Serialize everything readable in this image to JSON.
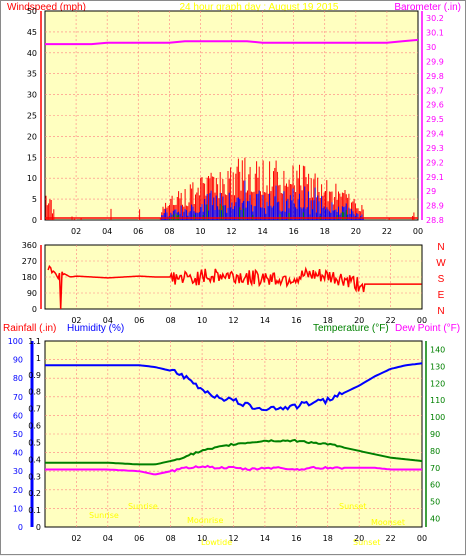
{
  "header": {
    "left_label": "Windspeed (mph)",
    "title": "24 hour graph day : August 19 2015",
    "right_label": "Barometer (.in)"
  },
  "colors": {
    "plot_bg": "#ffffc0",
    "grid": "#ff8080",
    "axis_red": "#ff0000",
    "wind_gust": "#ff0000",
    "wind_avg": "#0000ff",
    "wind_green": "#008000",
    "barometer": "#ff00ff",
    "humidity": "#0000ff",
    "temperature": "#008000",
    "dewpoint": "#ff00ff",
    "direction": "#ff0000",
    "sun_labels": "#ffff00",
    "label_green": "#008000",
    "label_blue": "#0000ff",
    "label_mag": "#ff00ff"
  },
  "x_ticks": [
    "02",
    "04",
    "06",
    "08",
    "10",
    "12",
    "14",
    "16",
    "18",
    "20",
    "22",
    "00"
  ],
  "wind_panel": {
    "y_ticks": [
      "0",
      "5",
      "10",
      "15",
      "20",
      "25",
      "30",
      "35",
      "40",
      "45",
      "50"
    ],
    "baro_ticks": [
      "28.8",
      "28.9",
      "29",
      "29.1",
      "29.2",
      "29.3",
      "29.4",
      "29.5",
      "29.6",
      "29.7",
      "29.8",
      "29.9",
      "30",
      "30.1",
      "30.2"
    ]
  },
  "direction_panel": {
    "y_ticks": [
      "0",
      "90",
      "180",
      "270",
      "360"
    ],
    "compass": [
      "N",
      "W",
      "S",
      "E",
      "N"
    ]
  },
  "lower_panel": {
    "rain_label": "Rainfall (.in)",
    "humidity_label": "Humidity (%)",
    "temperature_label": "Temperature (°F)",
    "dewpoint_label": "Dew Point (°F)",
    "rain_ticks": [
      "0",
      "0.1",
      "0.2",
      "0.3",
      "0.4",
      "0.5",
      "0.6",
      "0.7",
      "0.8",
      "0.9",
      "1",
      "1.1"
    ],
    "humidity_ticks": [
      "0",
      "10",
      "20",
      "30",
      "40",
      "50",
      "60",
      "70",
      "80",
      "90",
      "100"
    ],
    "temp_ticks": [
      "40",
      "50",
      "60",
      "70",
      "80",
      "90",
      "100",
      "110",
      "120",
      "130",
      "140"
    ],
    "sun_texts": [
      "Sunrise",
      "Sunrise",
      "Moonrise",
      "Lowtide",
      "Sunset",
      "Sunset",
      "Moonset"
    ]
  },
  "chart_data": [
    {
      "type": "line",
      "title": "24 hour graph day : August 19 2015",
      "ylabel": "Windspeed (mph)",
      "y2label": "Barometer (.in)",
      "ylim": [
        0,
        50
      ],
      "y2lim": [
        28.8,
        30.25
      ],
      "xlim": [
        0,
        24
      ],
      "series": [
        {
          "name": "Barometer (.in)",
          "x": [
            0,
            1,
            2,
            3,
            4,
            5,
            6,
            7,
            8,
            9,
            10,
            11,
            12,
            13,
            14,
            15,
            16,
            17,
            18,
            19,
            20,
            21,
            22,
            23,
            24
          ],
          "values": [
            30.02,
            30.02,
            30.02,
            30.02,
            30.03,
            30.03,
            30.03,
            30.03,
            30.03,
            30.04,
            30.04,
            30.04,
            30.04,
            30.04,
            30.03,
            30.03,
            30.03,
            30.03,
            30.03,
            30.03,
            30.03,
            30.03,
            30.03,
            30.04,
            30.05
          ]
        }
      ]
    },
    {
      "type": "line",
      "ylim": [
        0,
        360
      ],
      "xlim": [
        0,
        24
      ],
      "series": [
        {
          "name": "",
          "x": [
            0.2,
            0.5,
            0.8,
            1.2,
            1.6,
            2,
            3,
            4,
            5,
            6,
            7,
            8,
            9,
            10,
            11,
            12,
            13,
            14,
            15,
            16,
            17,
            18,
            19,
            20,
            21,
            22,
            23,
            24
          ],
          "values": [
            230,
            220,
            190,
            200,
            180,
            185,
            180,
            175,
            180,
            185,
            180,
            180,
            170,
            180,
            190,
            185,
            175,
            180,
            170,
            175,
            185,
            180,
            165,
            140,
            140,
            140,
            140,
            140
          ]
        }
      ]
    },
    {
      "type": "line",
      "ylim": [
        0,
        100
      ],
      "y2lim": [
        35,
        145
      ],
      "xlim": [
        0,
        24
      ],
      "series": [
        {
          "name": "Humidity (%)",
          "x": [
            0,
            2,
            4,
            6,
            7,
            8,
            9,
            10,
            11,
            12,
            13,
            14,
            15,
            16,
            17,
            18,
            19,
            20,
            21,
            22,
            23,
            24
          ],
          "values": [
            87,
            87,
            87,
            87,
            86,
            84,
            80,
            74,
            70,
            68,
            65,
            64,
            64,
            65,
            67,
            68,
            72,
            76,
            81,
            85,
            87,
            88
          ]
        },
        {
          "name": "Temperature (°F)",
          "x": [
            0,
            2,
            4,
            6,
            7,
            8,
            9,
            10,
            11,
            12,
            13,
            14,
            15,
            16,
            17,
            18,
            19,
            20,
            21,
            22,
            23,
            24
          ],
          "values": [
            73,
            73,
            73,
            72,
            72,
            74,
            77,
            80,
            82,
            84,
            85,
            86,
            86,
            86,
            85,
            84,
            82,
            80,
            78,
            76,
            75,
            74
          ]
        },
        {
          "name": "Dew Point (°F)",
          "x": [
            0,
            2,
            4,
            6,
            7,
            8,
            9,
            10,
            11,
            12,
            13,
            14,
            15,
            16,
            17,
            18,
            19,
            20,
            21,
            22,
            23,
            24
          ],
          "values": [
            69,
            69,
            69,
            68,
            66,
            68,
            70,
            71,
            70,
            70,
            69,
            70,
            70,
            69,
            70,
            70,
            70,
            70,
            70,
            69,
            69,
            69
          ]
        }
      ]
    }
  ]
}
